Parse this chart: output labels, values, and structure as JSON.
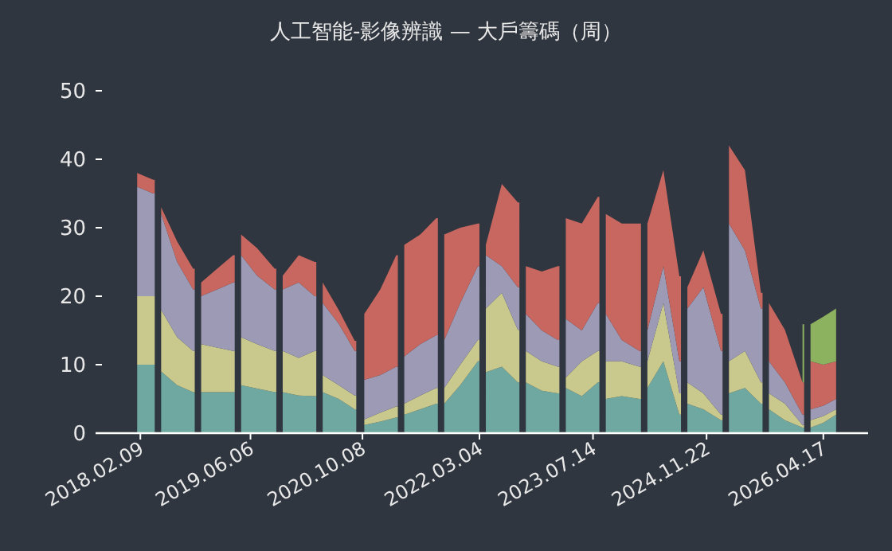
{
  "chart_data": {
    "type": "area",
    "stacked": true,
    "title": "人工智能-影像辨識 — 大戶籌碼（周）",
    "x": [
      "2018-01-26",
      "2018-04-06",
      "2018-04-13",
      "2018-05-11",
      "2018-07-20",
      "2018-09-28",
      "2018-10-05",
      "2018-11-02",
      "2019-01-11",
      "2019-03-22",
      "2019-03-29",
      "2019-04-26",
      "2019-07-05",
      "2019-09-20",
      "2019-09-27",
      "2019-10-25",
      "2020-01-03",
      "2020-03-13",
      "2020-03-20",
      "2020-04-17",
      "2020-06-26",
      "2020-09-04",
      "2020-09-11",
      "2020-10-16",
      "2020-12-25",
      "2021-03-05",
      "2021-03-12",
      "2021-04-09",
      "2021-06-18",
      "2021-08-27",
      "2021-09-03",
      "2021-10-01",
      "2021-12-10",
      "2022-02-25",
      "2022-03-04",
      "2022-04-01",
      "2022-06-10",
      "2022-08-19",
      "2022-08-26",
      "2022-09-23",
      "2022-12-02",
      "2023-02-10",
      "2023-02-17",
      "2023-03-17",
      "2023-05-26",
      "2023-08-04",
      "2023-08-11",
      "2023-09-08",
      "2023-11-17",
      "2024-02-02",
      "2024-02-09",
      "2024-03-08",
      "2024-05-17",
      "2024-07-26",
      "2024-08-02",
      "2024-08-30",
      "2024-11-08",
      "2025-01-24",
      "2025-01-31",
      "2025-02-28",
      "2025-05-09",
      "2025-07-18",
      "2025-07-25",
      "2025-08-22",
      "2025-10-31",
      "2026-01-16",
      "2026-01-23",
      "2026-02-20",
      "2026-04-17",
      "2026-06-12"
    ],
    "series": [
      {
        "color": "#6fa8a0",
        "values": [
          10,
          10,
          null,
          9,
          7,
          6,
          null,
          6,
          6,
          6,
          null,
          7,
          6.5,
          6,
          null,
          6,
          5.5,
          5.4,
          null,
          6,
          5,
          3.5,
          null,
          1.2,
          1.7,
          2.3,
          null,
          2.7,
          3.5,
          4.3,
          null,
          4.3,
          7,
          10.5,
          null,
          8.9,
          9.7,
          7.4,
          null,
          7.4,
          6.2,
          5.8,
          null,
          6.6,
          5.4,
          7.4,
          null,
          5,
          5.4,
          5,
          null,
          6.6,
          10.5,
          2.7,
          null,
          4.3,
          3.5,
          1.9,
          null,
          5.8,
          6.6,
          4.3,
          null,
          3.5,
          1.9,
          0.8,
          null,
          0.8,
          1.5,
          2.7
        ]
      },
      {
        "color": "#c9c98d",
        "values": [
          10,
          10,
          null,
          9,
          7,
          6,
          null,
          7,
          6.5,
          6,
          null,
          7,
          6.5,
          6,
          null,
          6,
          5.5,
          6.6,
          null,
          2.5,
          2,
          2,
          null,
          0.8,
          1.3,
          1.6,
          null,
          1.6,
          2,
          2.3,
          null,
          2.3,
          3,
          3.1,
          null,
          9.3,
          10.8,
          7.7,
          null,
          4.6,
          4.3,
          3.9,
          null,
          1.5,
          5.1,
          4.6,
          null,
          5.5,
          5.1,
          4.7,
          null,
          3.9,
          8.5,
          3.1,
          null,
          3.1,
          2.3,
          0.8,
          null,
          4.7,
          5.4,
          3.1,
          null,
          2.3,
          2.4,
          0.4,
          null,
          1.1,
          1,
          0.8
        ]
      },
      {
        "color": "#9c9ab5",
        "values": [
          16,
          15,
          null,
          14,
          11,
          9,
          null,
          7,
          8.5,
          10,
          null,
          12,
          10,
          9,
          null,
          9,
          11,
          8,
          null,
          10.5,
          9,
          6.5,
          null,
          5.8,
          5.5,
          5.8,
          null,
          6.9,
          7.5,
          7.7,
          null,
          7,
          9,
          10.8,
          null,
          7.8,
          3.9,
          6.2,
          null,
          5.4,
          4.5,
          3.9,
          null,
          8.6,
          4.5,
          7,
          null,
          6.9,
          3.1,
          2.3,
          null,
          4.5,
          5.4,
          4.7,
          null,
          10.8,
          15.5,
          9.3,
          null,
          20.1,
          14.7,
          10.8,
          null,
          4.7,
          3.1,
          1.5,
          null,
          1.6,
          1.5,
          1.5
        ]
      },
      {
        "color": "#c8675f",
        "values": [
          2,
          2,
          null,
          1,
          3,
          3,
          null,
          2,
          3,
          4,
          null,
          3,
          4,
          3,
          null,
          2,
          4,
          5,
          null,
          3,
          2,
          1.5,
          null,
          9.6,
          12.5,
          16.3,
          null,
          16.3,
          16,
          17.1,
          null,
          15.4,
          11,
          6.2,
          null,
          1.5,
          12,
          12.4,
          null,
          7,
          8.6,
          10.8,
          null,
          14.7,
          15.6,
          15.5,
          null,
          14.6,
          17,
          18.6,
          null,
          15.6,
          14,
          12.4,
          null,
          3.1,
          5.4,
          5.4,
          null,
          11.4,
          11.7,
          2.3,
          null,
          8.5,
          7.7,
          4.7,
          null,
          7,
          6,
          5.5
        ]
      },
      {
        "color": "#8db25f",
        "values": [
          null,
          null,
          null,
          null,
          null,
          null,
          null,
          null,
          null,
          null,
          null,
          null,
          null,
          null,
          null,
          null,
          null,
          null,
          null,
          null,
          null,
          null,
          null,
          null,
          null,
          null,
          null,
          null,
          null,
          null,
          null,
          null,
          null,
          null,
          null,
          null,
          null,
          null,
          null,
          null,
          null,
          null,
          null,
          null,
          null,
          null,
          null,
          null,
          null,
          null,
          null,
          null,
          null,
          null,
          null,
          null,
          null,
          null,
          null,
          null,
          null,
          null,
          null,
          null,
          null,
          8.5,
          null,
          5.4,
          7,
          7.7
        ]
      }
    ],
    "xlim": [
      "2017-07-28",
      "2026-10-30"
    ],
    "xticks": [
      {
        "value": "2018-02-09",
        "label": "2018.02.09"
      },
      {
        "value": "2019-06-06",
        "label": "2019.06.06"
      },
      {
        "value": "2020-10-08",
        "label": "2020.10.08"
      },
      {
        "value": "2022-03-04",
        "label": "2022.03.04"
      },
      {
        "value": "2023-07-14",
        "label": "2023.07.14"
      },
      {
        "value": "2024-11-22",
        "label": "2024.11.22"
      },
      {
        "value": "2026-04-17",
        "label": "2026.04.17"
      }
    ],
    "ylim": [
      0,
      50
    ],
    "yticks": [
      0,
      10,
      20,
      30,
      40,
      50
    ],
    "grid": false
  }
}
